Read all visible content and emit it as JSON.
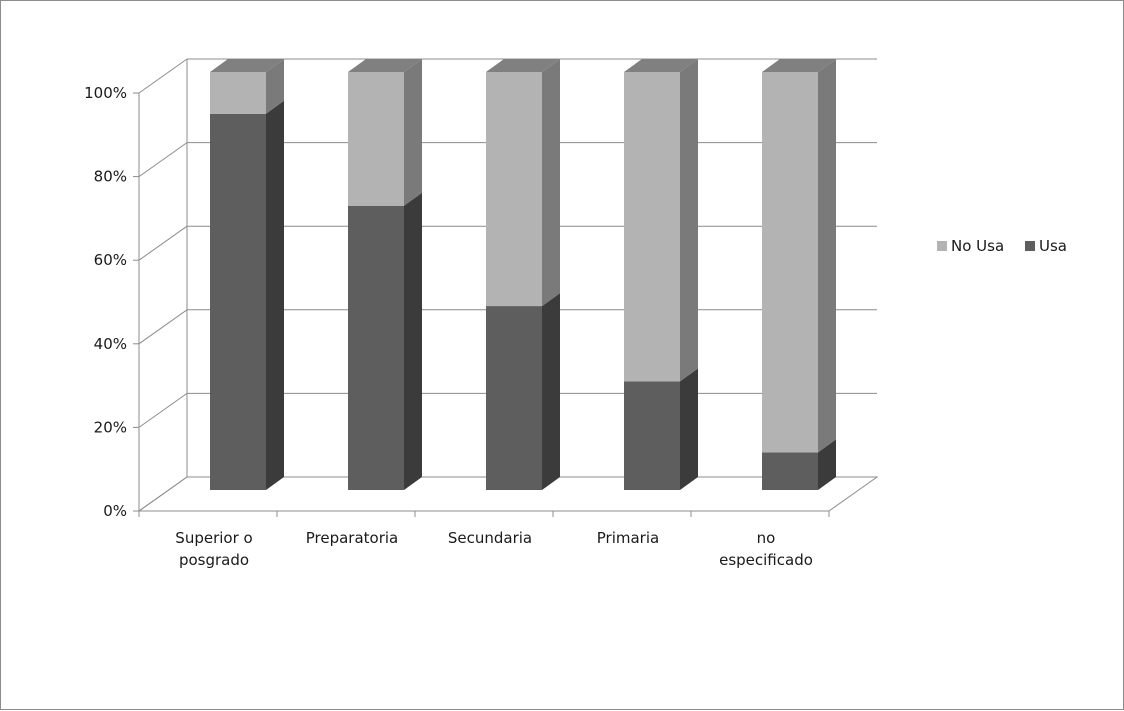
{
  "chart_data": {
    "type": "bar",
    "stacked": true,
    "percent_stacked": true,
    "three_d": true,
    "categories": [
      "Superior o posgrado",
      "Preparatoria",
      "Secundaria",
      "Primaria",
      "no especificado"
    ],
    "category_lines": [
      [
        "Superior o",
        "posgrado"
      ],
      [
        "Preparatoria"
      ],
      [
        "Secundaria"
      ],
      [
        "Primaria"
      ],
      [
        "no",
        "especificado"
      ]
    ],
    "series": [
      {
        "name": "Usa",
        "values": [
          90,
          68,
          44,
          26,
          9
        ],
        "color": "#5e5e5e",
        "side_color": "#3b3b3b",
        "top_color": "#6e6e6e"
      },
      {
        "name": "No Usa",
        "values": [
          10,
          32,
          56,
          74,
          91
        ],
        "color": "#b3b3b3",
        "side_color": "#7a7a7a",
        "top_color": "#808080"
      }
    ],
    "ylim": [
      0,
      100
    ],
    "yticks": [
      "0%",
      "20%",
      "40%",
      "60%",
      "80%",
      "100%"
    ],
    "grid": true,
    "legend_position": "right",
    "legend_order": [
      "No Usa",
      "Usa"
    ],
    "title": "",
    "xlabel": "",
    "ylabel": ""
  }
}
